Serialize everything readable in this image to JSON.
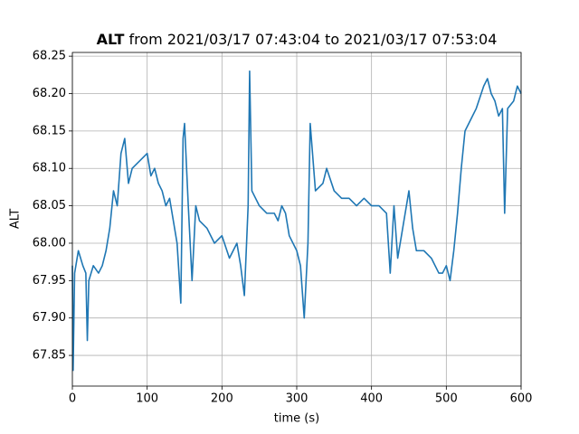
{
  "chart_data": {
    "type": "line",
    "title": [
      "ALT",
      "from 2021/03/17 07:43:04 to 2021/03/17 07:53:04"
    ],
    "xlabel": "time (s)",
    "ylabel": "ALT",
    "x": [
      0,
      1,
      3,
      8,
      14,
      18,
      20,
      22,
      28,
      35,
      40,
      45,
      50,
      55,
      60,
      65,
      70,
      75,
      80,
      90,
      100,
      105,
      110,
      115,
      120,
      125,
      130,
      140,
      145,
      148,
      150,
      155,
      160,
      165,
      170,
      180,
      190,
      200,
      210,
      220,
      225,
      230,
      235,
      237,
      240,
      250,
      260,
      270,
      275,
      280,
      285,
      290,
      300,
      305,
      310,
      315,
      318,
      325,
      335,
      340,
      350,
      360,
      370,
      380,
      390,
      400,
      410,
      420,
      425,
      430,
      435,
      440,
      450,
      455,
      460,
      470,
      480,
      490,
      495,
      500,
      505,
      510,
      515,
      520,
      525,
      530,
      540,
      550,
      555,
      560,
      565,
      570,
      575,
      578,
      582,
      590,
      595,
      600
    ],
    "series": [
      {
        "name": "ALT",
        "color": "#1f77b4",
        "values": [
          67.97,
          67.83,
          67.96,
          67.99,
          67.97,
          67.96,
          67.87,
          67.95,
          67.97,
          67.96,
          67.97,
          67.99,
          68.02,
          68.07,
          68.05,
          68.12,
          68.14,
          68.08,
          68.1,
          68.11,
          68.12,
          68.09,
          68.1,
          68.08,
          68.07,
          68.05,
          68.06,
          68.0,
          67.92,
          68.14,
          68.16,
          68.05,
          67.95,
          68.05,
          68.03,
          68.02,
          68.0,
          68.01,
          67.98,
          68.0,
          67.97,
          67.93,
          68.05,
          68.23,
          68.07,
          68.05,
          68.04,
          68.04,
          68.03,
          68.05,
          68.04,
          68.01,
          67.99,
          67.97,
          67.9,
          68.0,
          68.16,
          68.07,
          68.08,
          68.1,
          68.07,
          68.06,
          68.06,
          68.05,
          68.06,
          68.05,
          68.05,
          68.04,
          67.96,
          68.05,
          67.98,
          68.01,
          68.07,
          68.02,
          67.99,
          67.99,
          67.98,
          67.96,
          67.96,
          67.97,
          67.95,
          67.99,
          68.04,
          68.1,
          68.15,
          68.16,
          68.18,
          68.21,
          68.22,
          68.2,
          68.19,
          68.17,
          68.18,
          68.04,
          68.18,
          68.19,
          68.21,
          68.2
        ]
      }
    ],
    "xlim": [
      0,
      600
    ],
    "xticks": [
      0,
      100,
      200,
      300,
      400,
      500,
      600
    ],
    "ylim": [
      67.809,
      68.255
    ],
    "yticks": [
      67.85,
      {
        "value": 67.9,
        "label": "67.90"
      },
      67.95,
      {
        "value": 68.0,
        "label": "68.00"
      },
      68.05,
      {
        "value": 68.1,
        "label": "68.10"
      },
      68.15,
      {
        "value": 68.2,
        "label": "68.20"
      },
      68.25
    ],
    "grid": true
  }
}
